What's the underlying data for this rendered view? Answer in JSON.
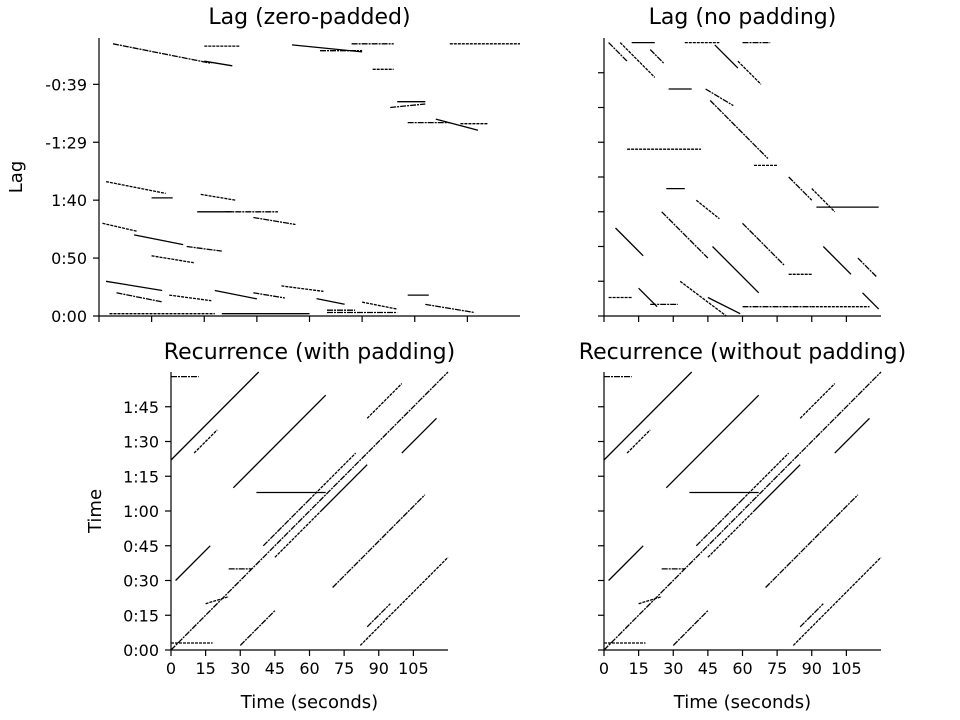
{
  "figure": {
    "background": "#ffffff",
    "mark_color": "#000000"
  },
  "chart_data": [
    {
      "id": "lag_pad",
      "type": "heatmap",
      "title": "Lag (zero-padded)",
      "xlabel": "",
      "ylabel": "Lag",
      "x_unit": "seconds",
      "y_unit": "seconds",
      "xlim": [
        0,
        120
      ],
      "ylim": [
        0,
        240
      ],
      "x_ticks": [
        0,
        15,
        30,
        45,
        60,
        75,
        90,
        105
      ],
      "x_tick_labels": [
        "",
        "",
        "",
        "",
        "",
        "",
        "",
        ""
      ],
      "y_ticks": [
        0,
        50,
        100,
        150,
        200
      ],
      "y_tick_labels": [
        "0:00",
        "0:50",
        "1:40",
        "-1:29",
        "-0:39"
      ],
      "grid": false,
      "legend": "none",
      "segments": [
        {
          "x": 4,
          "y": 235,
          "len": 28,
          "slope": -0.6
        },
        {
          "x": 30,
          "y": 233,
          "len": 10,
          "slope": 0.0
        },
        {
          "x": 55,
          "y": 234,
          "len": 20,
          "slope": -0.3
        },
        {
          "x": 72,
          "y": 235,
          "len": 12,
          "slope": 0.0
        },
        {
          "x": 100,
          "y": 235,
          "len": 20,
          "slope": 0.0
        },
        {
          "x": 30,
          "y": 220,
          "len": 8,
          "slope": -0.5
        },
        {
          "x": 63,
          "y": 229,
          "len": 12,
          "slope": 0.0
        },
        {
          "x": 78,
          "y": 213,
          "len": 6,
          "slope": 0.0
        },
        {
          "x": 85,
          "y": 185,
          "len": 8,
          "slope": 0.0
        },
        {
          "x": 88,
          "y": 167,
          "len": 12,
          "slope": 0.0
        },
        {
          "x": 103,
          "y": 166,
          "len": 8,
          "slope": 0.0
        },
        {
          "x": 96,
          "y": 170,
          "len": 12,
          "slope": -0.8
        },
        {
          "x": 83,
          "y": 180,
          "len": 10,
          "slope": 0.3
        },
        {
          "x": 2,
          "y": 116,
          "len": 17,
          "slope": -0.6
        },
        {
          "x": 28,
          "y": 90,
          "len": 10,
          "slope": 0.0
        },
        {
          "x": 36,
          "y": 90,
          "len": 15,
          "slope": 0.0
        },
        {
          "x": 29,
          "y": 105,
          "len": 10,
          "slope": -0.5
        },
        {
          "x": 15,
          "y": 102,
          "len": 6,
          "slope": 0.0
        },
        {
          "x": 44,
          "y": 85,
          "len": 12,
          "slope": -0.5
        },
        {
          "x": 1,
          "y": 80,
          "len": 10,
          "slope": -0.7
        },
        {
          "x": 10,
          "y": 70,
          "len": 14,
          "slope": -0.6
        },
        {
          "x": 25,
          "y": 60,
          "len": 10,
          "slope": -0.4
        },
        {
          "x": 15,
          "y": 52,
          "len": 12,
          "slope": -0.5
        },
        {
          "x": 2,
          "y": 30,
          "len": 16,
          "slope": -0.5
        },
        {
          "x": 5,
          "y": 20,
          "len": 13,
          "slope": -0.6
        },
        {
          "x": 20,
          "y": 18,
          "len": 12,
          "slope": -0.4
        },
        {
          "x": 33,
          "y": 22,
          "len": 12,
          "slope": -0.6
        },
        {
          "x": 44,
          "y": 20,
          "len": 9,
          "slope": -0.5
        },
        {
          "x": 52,
          "y": 26,
          "len": 12,
          "slope": -0.4
        },
        {
          "x": 62,
          "y": 15,
          "len": 8,
          "slope": -0.6
        },
        {
          "x": 65,
          "y": 5,
          "len": 8,
          "slope": 0.0
        },
        {
          "x": 75,
          "y": 12,
          "len": 10,
          "slope": -0.6
        },
        {
          "x": 88,
          "y": 18,
          "len": 6,
          "slope": 0.0
        },
        {
          "x": 93,
          "y": 10,
          "len": 14,
          "slope": -0.5
        },
        {
          "x": 3,
          "y": 2,
          "len": 30,
          "slope": 0.0
        },
        {
          "x": 35,
          "y": 2,
          "len": 25,
          "slope": 0.0
        },
        {
          "x": 65,
          "y": 3,
          "len": 20,
          "slope": 0.0
        }
      ]
    },
    {
      "id": "lag_nopad",
      "type": "heatmap",
      "title": "Lag (no padding)",
      "xlabel": "",
      "ylabel": "",
      "x_unit": "seconds",
      "y_unit": "seconds",
      "xlim": [
        0,
        120
      ],
      "ylim": [
        0,
        120
      ],
      "x_ticks": [
        0,
        15,
        30,
        45,
        60,
        75,
        90,
        105
      ],
      "x_tick_labels": [
        "",
        "",
        "",
        "",
        "",
        "",
        "",
        ""
      ],
      "y_ticks": [
        0,
        15,
        30,
        45,
        60,
        75,
        90,
        105
      ],
      "y_tick_labels": [
        "",
        "",
        "",
        "",
        "",
        "",
        "",
        ""
      ],
      "grid": false,
      "legend": "none",
      "segments": [
        {
          "x": 2,
          "y": 118,
          "len": 8,
          "slope": -1.0
        },
        {
          "x": 7,
          "y": 118,
          "len": 15,
          "slope": -1.0
        },
        {
          "x": 12,
          "y": 118,
          "len": 10,
          "slope": 0.0
        },
        {
          "x": 20,
          "y": 115,
          "len": 6,
          "slope": -1.0
        },
        {
          "x": 35,
          "y": 118,
          "len": 15,
          "slope": 0.0
        },
        {
          "x": 48,
          "y": 117,
          "len": 10,
          "slope": -1.0
        },
        {
          "x": 60,
          "y": 118,
          "len": 12,
          "slope": 0.0
        },
        {
          "x": 58,
          "y": 110,
          "len": 10,
          "slope": -1.0
        },
        {
          "x": 28,
          "y": 98,
          "len": 10,
          "slope": 0.0
        },
        {
          "x": 46,
          "y": 93,
          "len": 25,
          "slope": -1.0
        },
        {
          "x": 10,
          "y": 72,
          "len": 32,
          "slope": 0.0
        },
        {
          "x": 27,
          "y": 55,
          "len": 8,
          "slope": 0.0
        },
        {
          "x": 44,
          "y": 98,
          "len": 12,
          "slope": -0.6
        },
        {
          "x": 65,
          "y": 65,
          "len": 10,
          "slope": 0.0
        },
        {
          "x": 92,
          "y": 47,
          "len": 27,
          "slope": 0.0
        },
        {
          "x": 80,
          "y": 60,
          "len": 10,
          "slope": -1.0
        },
        {
          "x": 90,
          "y": 55,
          "len": 10,
          "slope": -1.0
        },
        {
          "x": 5,
          "y": 38,
          "len": 12,
          "slope": -1.0
        },
        {
          "x": 25,
          "y": 45,
          "len": 20,
          "slope": -1.0
        },
        {
          "x": 40,
          "y": 50,
          "len": 10,
          "slope": -0.8
        },
        {
          "x": 47,
          "y": 30,
          "len": 20,
          "slope": -1.0
        },
        {
          "x": 60,
          "y": 40,
          "len": 18,
          "slope": -1.0
        },
        {
          "x": 80,
          "y": 18,
          "len": 10,
          "slope": 0.0
        },
        {
          "x": 95,
          "y": 30,
          "len": 12,
          "slope": -1.0
        },
        {
          "x": 110,
          "y": 25,
          "len": 8,
          "slope": -1.0
        },
        {
          "x": 2,
          "y": 8,
          "len": 10,
          "slope": 0.0
        },
        {
          "x": 15,
          "y": 12,
          "len": 8,
          "slope": -1.0
        },
        {
          "x": 20,
          "y": 5,
          "len": 12,
          "slope": 0.0
        },
        {
          "x": 33,
          "y": 15,
          "len": 20,
          "slope": -1.0
        },
        {
          "x": 45,
          "y": 8,
          "len": 14,
          "slope": -0.5
        },
        {
          "x": 60,
          "y": 4,
          "len": 30,
          "slope": 0.0
        },
        {
          "x": 90,
          "y": 4,
          "len": 25,
          "slope": 0.0
        },
        {
          "x": 112,
          "y": 10,
          "len": 7,
          "slope": -1.0
        }
      ]
    },
    {
      "id": "rec_pad",
      "type": "heatmap",
      "title": "Recurrence (with padding)",
      "xlabel": "Time (seconds)",
      "ylabel": "Time",
      "x_unit": "seconds",
      "y_unit": "seconds",
      "xlim": [
        0,
        120
      ],
      "ylim": [
        0,
        120
      ],
      "x_ticks": [
        0,
        15,
        30,
        45,
        60,
        75,
        90,
        105
      ],
      "x_tick_labels": [
        "0",
        "15",
        "30",
        "45",
        "60",
        "75",
        "90",
        "105"
      ],
      "y_ticks": [
        0,
        15,
        30,
        45,
        60,
        75,
        90,
        105
      ],
      "y_tick_labels": [
        "0:00",
        "0:15",
        "0:30",
        "0:45",
        "1:00",
        "1:15",
        "1:30",
        "1:45"
      ],
      "grid": false,
      "legend": "none",
      "segments": [
        {
          "x": 0,
          "y": 0,
          "len": 120,
          "slope": 1.0
        },
        {
          "x": 82,
          "y": 2,
          "len": 38,
          "slope": 1.0
        },
        {
          "x": 0,
          "y": 82,
          "len": 38,
          "slope": 1.0
        },
        {
          "x": 85,
          "y": 10,
          "len": 10,
          "slope": 1.0
        },
        {
          "x": 10,
          "y": 85,
          "len": 10,
          "slope": 1.0
        },
        {
          "x": 27,
          "y": 70,
          "len": 40,
          "slope": 1.0
        },
        {
          "x": 70,
          "y": 27,
          "len": 40,
          "slope": 1.0
        },
        {
          "x": 60,
          "y": 65,
          "len": 20,
          "slope": 1.0
        },
        {
          "x": 65,
          "y": 60,
          "len": 20,
          "slope": 1.0
        },
        {
          "x": 40,
          "y": 45,
          "len": 20,
          "slope": 1.0
        },
        {
          "x": 45,
          "y": 40,
          "len": 20,
          "slope": 1.0
        },
        {
          "x": 2,
          "y": 30,
          "len": 15,
          "slope": 1.0
        },
        {
          "x": 30,
          "y": 2,
          "len": 15,
          "slope": 1.0
        },
        {
          "x": 85,
          "y": 100,
          "len": 15,
          "slope": 1.0
        },
        {
          "x": 100,
          "y": 85,
          "len": 15,
          "slope": 1.0
        },
        {
          "x": 0,
          "y": 118,
          "len": 12,
          "slope": 0.0
        },
        {
          "x": 0,
          "y": 3,
          "len": 18,
          "slope": 0.0
        },
        {
          "x": 37,
          "y": 68,
          "len": 30,
          "slope": 0.0
        },
        {
          "x": 25,
          "y": 35,
          "len": 10,
          "slope": 0.0
        },
        {
          "x": 15,
          "y": 20,
          "len": 10,
          "slope": 0.3
        }
      ]
    },
    {
      "id": "rec_nopad",
      "type": "heatmap",
      "title": "Recurrence (without padding)",
      "xlabel": "Time (seconds)",
      "ylabel": "",
      "x_unit": "seconds",
      "y_unit": "seconds",
      "xlim": [
        0,
        120
      ],
      "ylim": [
        0,
        120
      ],
      "x_ticks": [
        0,
        15,
        30,
        45,
        60,
        75,
        90,
        105
      ],
      "x_tick_labels": [
        "0",
        "15",
        "30",
        "45",
        "60",
        "75",
        "90",
        "105"
      ],
      "y_ticks": [
        0,
        15,
        30,
        45,
        60,
        75,
        90,
        105
      ],
      "y_tick_labels": [
        "",
        "",
        "",
        "",
        "",
        "",
        "",
        ""
      ],
      "grid": false,
      "legend": "none",
      "segments": [
        {
          "x": 0,
          "y": 0,
          "len": 120,
          "slope": 1.0
        },
        {
          "x": 82,
          "y": 2,
          "len": 38,
          "slope": 1.0
        },
        {
          "x": 0,
          "y": 82,
          "len": 38,
          "slope": 1.0
        },
        {
          "x": 85,
          "y": 10,
          "len": 10,
          "slope": 1.0
        },
        {
          "x": 10,
          "y": 85,
          "len": 10,
          "slope": 1.0
        },
        {
          "x": 27,
          "y": 70,
          "len": 40,
          "slope": 1.0
        },
        {
          "x": 70,
          "y": 27,
          "len": 40,
          "slope": 1.0
        },
        {
          "x": 60,
          "y": 65,
          "len": 20,
          "slope": 1.0
        },
        {
          "x": 65,
          "y": 60,
          "len": 20,
          "slope": 1.0
        },
        {
          "x": 40,
          "y": 45,
          "len": 20,
          "slope": 1.0
        },
        {
          "x": 45,
          "y": 40,
          "len": 20,
          "slope": 1.0
        },
        {
          "x": 2,
          "y": 30,
          "len": 15,
          "slope": 1.0
        },
        {
          "x": 30,
          "y": 2,
          "len": 15,
          "slope": 1.0
        },
        {
          "x": 85,
          "y": 100,
          "len": 15,
          "slope": 1.0
        },
        {
          "x": 100,
          "y": 85,
          "len": 15,
          "slope": 1.0
        },
        {
          "x": 0,
          "y": 118,
          "len": 12,
          "slope": 0.0
        },
        {
          "x": 0,
          "y": 3,
          "len": 18,
          "slope": 0.0
        },
        {
          "x": 37,
          "y": 68,
          "len": 30,
          "slope": 0.0
        },
        {
          "x": 25,
          "y": 35,
          "len": 10,
          "slope": 0.0
        },
        {
          "x": 15,
          "y": 20,
          "len": 10,
          "slope": 0.3
        }
      ]
    }
  ]
}
